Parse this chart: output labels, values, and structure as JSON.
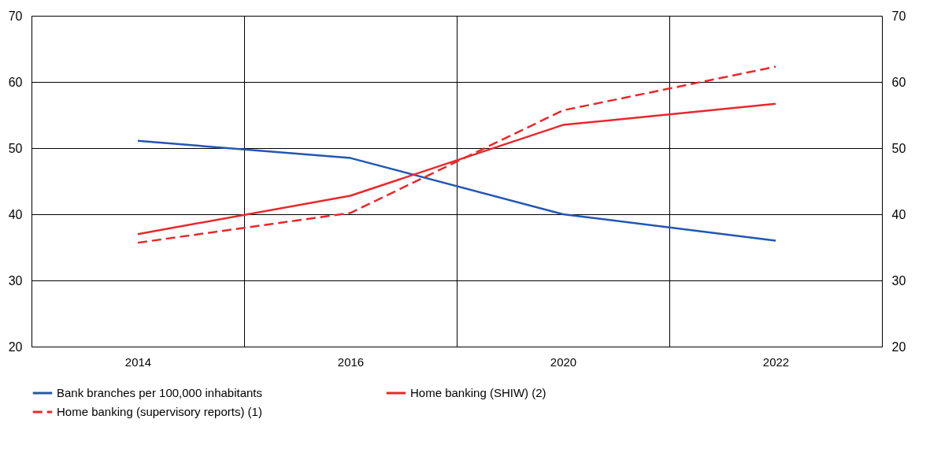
{
  "chart_data": {
    "type": "line",
    "categories": [
      "2014",
      "2016",
      "2020",
      "2022"
    ],
    "series": [
      {
        "name": "Bank branches per 100,000 inhabitants",
        "color": "#2356b4",
        "values": [
          51.1,
          48.5,
          40,
          36
        ],
        "line_style": "solid"
      },
      {
        "name": "Home banking (supervisory reports) (1)",
        "color": "#e8282c",
        "values": [
          35.7,
          40.2,
          55.7,
          62.3
        ],
        "line_style": "dashed"
      },
      {
        "name": "Home banking (SHIW) (2)",
        "color": "#e8282c",
        "values": [
          37,
          42.8,
          53.5,
          56.7
        ],
        "line_style": "solid"
      }
    ],
    "ylim": [
      20,
      70
    ],
    "yticks": [
      20,
      30,
      40,
      50,
      60,
      70
    ],
    "y2lim": [
      20,
      70
    ],
    "y2ticks": [
      20,
      30,
      40,
      50,
      60,
      70
    ],
    "grid": true,
    "legend": "bottom",
    "marker": "none"
  }
}
